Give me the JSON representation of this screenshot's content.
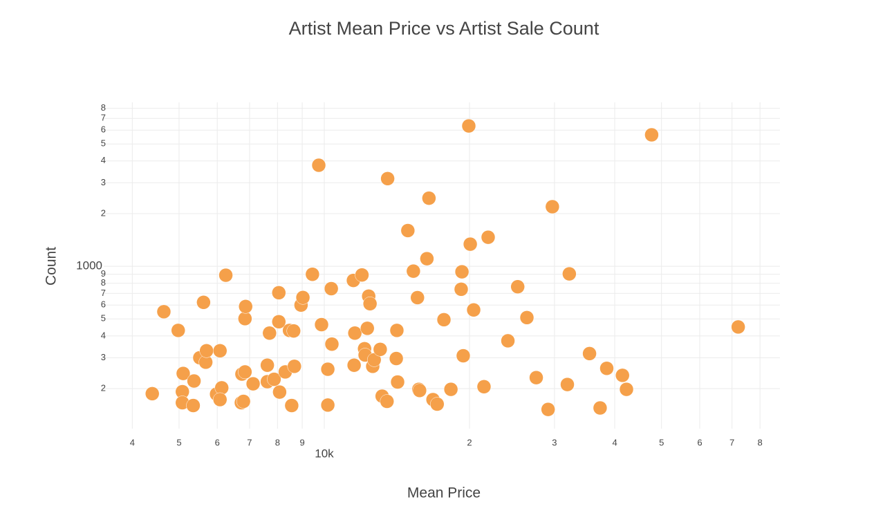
{
  "chart_data": {
    "type": "scatter",
    "title": "Artist Mean Price vs Artist Sale Count",
    "x_label": "Mean Price",
    "y_label": "Count",
    "color": "#f5a04a",
    "xscale": "log",
    "yscale": "log",
    "grid": true,
    "xlim": [
      3490,
      88000
    ],
    "ylim": [
      118,
      8650
    ],
    "xticks": [
      {
        "value": 4000,
        "label": "4"
      },
      {
        "value": 5000,
        "label": "5"
      },
      {
        "value": 6000,
        "label": "6"
      },
      {
        "value": 7000,
        "label": "7"
      },
      {
        "value": 8000,
        "label": "8"
      },
      {
        "value": 9000,
        "label": "9"
      },
      {
        "value": 10000,
        "label": "10k"
      },
      {
        "value": 20000,
        "label": "2"
      },
      {
        "value": 30000,
        "label": "3"
      },
      {
        "value": 40000,
        "label": "4"
      },
      {
        "value": 50000,
        "label": "5"
      },
      {
        "value": 60000,
        "label": "6"
      },
      {
        "value": 70000,
        "label": "7"
      },
      {
        "value": 80000,
        "label": "8"
      }
    ],
    "yticks": [
      {
        "value": 200,
        "label": "2"
      },
      {
        "value": 300,
        "label": "3"
      },
      {
        "value": 400,
        "label": "4"
      },
      {
        "value": 500,
        "label": "5"
      },
      {
        "value": 600,
        "label": "6"
      },
      {
        "value": 700,
        "label": "7"
      },
      {
        "value": 800,
        "label": "8"
      },
      {
        "value": 900,
        "label": "9"
      },
      1000,
      {
        "value": 2000,
        "label": "2"
      },
      {
        "value": 3000,
        "label": "3"
      },
      {
        "value": 4000,
        "label": "4"
      },
      {
        "value": 5000,
        "label": "5"
      },
      {
        "value": 6000,
        "label": "6"
      },
      {
        "value": 7000,
        "label": "7"
      },
      {
        "value": 8000,
        "label": "8"
      }
    ],
    "x": [
      4400,
      4650,
      4980,
      5100,
      5080,
      5080,
      5350,
      5370,
      5520,
      5680,
      5700,
      5620,
      6080,
      5980,
      6130,
      6080,
      6250,
      6730,
      6800,
      6750,
      6850,
      6850,
      6870,
      7120,
      7620,
      7620,
      7700,
      7870,
      8050,
      8050,
      8080,
      8300,
      8470,
      8640,
      8670,
      8560,
      8950,
      9030,
      9450,
      9740,
      9870,
      10170,
      10170,
      10340,
      10370,
      11490,
      11570,
      11530,
      11970,
      12120,
      12150,
      12280,
      12360,
      12440,
      12600,
      12690,
      13060,
      13180,
      13490,
      13530,
      14140,
      14100,
      14190,
      14900,
      15300,
      15600,
      15700,
      15760,
      16320,
      16480,
      16800,
      17140,
      17700,
      18300,
      19290,
      19220,
      19410,
      19930,
      20070,
      20400,
      21430,
      21860,
      24020,
      25170,
      26300,
      27500,
      29100,
      29700,
      31900,
      32200,
      35460,
      37300,
      38500,
      41500,
      42300,
      47700,
      72100
    ],
    "y": [
      187,
      550,
      430,
      244,
      192,
      166,
      160,
      221,
      300,
      283,
      329,
      622,
      329,
      186,
      202,
      173,
      889,
      166,
      169,
      242,
      249,
      502,
      589,
      213,
      272,
      219,
      415,
      226,
      706,
      482,
      191,
      249,
      430,
      427,
      268,
      160,
      600,
      663,
      900,
      3780,
      464,
      258,
      161,
      745,
      359,
      830,
      415,
      272,
      892,
      338,
      311,
      442,
      675,
      611,
      268,
      292,
      335,
      181,
      169,
      3170,
      430,
      297,
      218,
      1600,
      938,
      662,
      198,
      195,
      1105,
      2450,
      173,
      163,
      495,
      198,
      930,
      739,
      308,
      6340,
      1338,
      563,
      205,
      1465,
      375,
      764,
      509,
      231,
      152,
      2190,
      211,
      905,
      317,
      155,
      261,
      238,
      198,
      5640,
      450
    ]
  }
}
